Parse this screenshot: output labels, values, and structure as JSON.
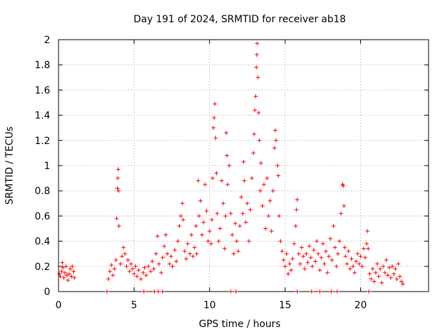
{
  "chart_data": {
    "type": "scatter",
    "title": "Day 191 of 2024, SRMTID for receiver ab18",
    "xlabel": "GPS time / hours",
    "ylabel": "SRMTID / TECUs",
    "xlim": [
      0,
      24.5
    ],
    "ylim": [
      0,
      2
    ],
    "xticks": [
      0,
      5,
      10,
      15,
      20
    ],
    "xtick_labels": [
      "0",
      "5",
      "10",
      "15",
      "20"
    ],
    "yticks": [
      0,
      0.2,
      0.4,
      0.6,
      0.8,
      1,
      1.2,
      1.4,
      1.6,
      1.8,
      2
    ],
    "ytick_labels": [
      "0",
      "0.2",
      "0.4",
      "0.6",
      "0.8",
      "1",
      "1.2",
      "1.4",
      "1.6",
      "1.8",
      "2"
    ],
    "grid": true,
    "marker": "+",
    "series": [
      {
        "name": "SRMTID",
        "color": "#ff0000",
        "points": [
          [
            0.05,
            0.14
          ],
          [
            0.12,
            0.12
          ],
          [
            0.2,
            0.16
          ],
          [
            0.25,
            0.23
          ],
          [
            0.3,
            0.19
          ],
          [
            0.35,
            0.11
          ],
          [
            0.42,
            0.15
          ],
          [
            0.5,
            0.2
          ],
          [
            0.55,
            0.13
          ],
          [
            0.62,
            0.09
          ],
          [
            0.7,
            0.14
          ],
          [
            0.78,
            0.18
          ],
          [
            0.85,
            0.12
          ],
          [
            0.92,
            0.2
          ],
          [
            1.0,
            0.16
          ],
          [
            1.05,
            0.11
          ],
          [
            3.3,
            0.1
          ],
          [
            3.4,
            0.16
          ],
          [
            3.5,
            0.21
          ],
          [
            3.6,
            0.13
          ],
          [
            3.7,
            0.18
          ],
          [
            3.8,
            0.25
          ],
          [
            3.85,
            0.58
          ],
          [
            3.9,
            0.82
          ],
          [
            3.92,
            0.9
          ],
          [
            3.95,
            0.97
          ],
          [
            3.98,
            0.8
          ],
          [
            4.0,
            0.52
          ],
          [
            4.1,
            0.22
          ],
          [
            4.2,
            0.28
          ],
          [
            4.3,
            0.35
          ],
          [
            4.4,
            0.3
          ],
          [
            4.5,
            0.2
          ],
          [
            4.6,
            0.25
          ],
          [
            4.7,
            0.16
          ],
          [
            4.8,
            0.22
          ],
          [
            4.9,
            0.18
          ],
          [
            5.0,
            0.14
          ],
          [
            5.1,
            0.2
          ],
          [
            5.2,
            0.12
          ],
          [
            5.3,
            0.17
          ],
          [
            5.45,
            0.1
          ],
          [
            5.6,
            0.15
          ],
          [
            5.7,
            0.19
          ],
          [
            5.8,
            0.13
          ],
          [
            5.95,
            0.2
          ],
          [
            6.1,
            0.16
          ],
          [
            6.2,
            0.24
          ],
          [
            6.3,
            0.18
          ],
          [
            6.45,
            0.3
          ],
          [
            6.55,
            0.44
          ],
          [
            6.65,
            0.22
          ],
          [
            6.8,
            0.15
          ],
          [
            6.9,
            0.27
          ],
          [
            7.0,
            0.36
          ],
          [
            7.1,
            0.45
          ],
          [
            7.2,
            0.3
          ],
          [
            7.35,
            0.22
          ],
          [
            7.45,
            0.28
          ],
          [
            7.55,
            0.2
          ],
          [
            7.7,
            0.33
          ],
          [
            7.8,
            0.24
          ],
          [
            7.9,
            0.4
          ],
          [
            8.0,
            0.52
          ],
          [
            8.1,
            0.6
          ],
          [
            8.2,
            0.7
          ],
          [
            8.25,
            0.57
          ],
          [
            8.35,
            0.32
          ],
          [
            8.45,
            0.26
          ],
          [
            8.55,
            0.38
          ],
          [
            8.7,
            0.3
          ],
          [
            8.8,
            0.45
          ],
          [
            8.9,
            0.28
          ],
          [
            9.0,
            0.35
          ],
          [
            9.1,
            0.52
          ],
          [
            9.15,
            0.3
          ],
          [
            9.25,
            0.88
          ],
          [
            9.3,
            0.6
          ],
          [
            9.4,
            0.72
          ],
          [
            9.5,
            0.45
          ],
          [
            9.6,
            0.55
          ],
          [
            9.7,
            0.85
          ],
          [
            9.8,
            0.64
          ],
          [
            9.9,
            0.4
          ],
          [
            10.0,
            0.48
          ],
          [
            10.1,
            0.38
          ],
          [
            10.15,
            0.57
          ],
          [
            10.2,
            0.9
          ],
          [
            10.25,
            1.3
          ],
          [
            10.3,
            1.38
          ],
          [
            10.35,
            1.49
          ],
          [
            10.4,
            1.22
          ],
          [
            10.45,
            0.94
          ],
          [
            10.5,
            0.62
          ],
          [
            10.6,
            0.4
          ],
          [
            10.7,
            0.5
          ],
          [
            10.8,
            0.88
          ],
          [
            10.9,
            0.7
          ],
          [
            11.0,
            0.34
          ],
          [
            11.05,
            0.6
          ],
          [
            11.1,
            1.26
          ],
          [
            11.15,
            1.08
          ],
          [
            11.2,
            0.85
          ],
          [
            11.3,
            1.0
          ],
          [
            11.4,
            0.62
          ],
          [
            11.5,
            0.45
          ],
          [
            11.6,
            0.3
          ],
          [
            11.7,
            0.54
          ],
          [
            11.8,
            0.4
          ],
          [
            11.9,
            0.32
          ],
          [
            12.0,
            0.52
          ],
          [
            12.1,
            0.75
          ],
          [
            12.2,
            0.62
          ],
          [
            12.25,
            1.03
          ],
          [
            12.3,
            0.88
          ],
          [
            12.4,
            0.55
          ],
          [
            12.5,
            0.7
          ],
          [
            12.6,
            0.4
          ],
          [
            12.7,
            0.65
          ],
          [
            12.8,
            0.9
          ],
          [
            12.9,
            1.1
          ],
          [
            12.95,
            1.25
          ],
          [
            13.0,
            1.44
          ],
          [
            13.05,
            1.55
          ],
          [
            13.1,
            1.78
          ],
          [
            13.13,
            1.88
          ],
          [
            13.15,
            1.97
          ],
          [
            13.2,
            1.7
          ],
          [
            13.25,
            1.42
          ],
          [
            13.3,
            1.2
          ],
          [
            13.35,
            0.8
          ],
          [
            13.4,
            1.02
          ],
          [
            13.5,
            0.68
          ],
          [
            13.6,
            0.85
          ],
          [
            13.7,
            0.5
          ],
          [
            13.8,
            0.9
          ],
          [
            13.9,
            0.6
          ],
          [
            14.0,
            0.72
          ],
          [
            14.1,
            0.48
          ],
          [
            14.2,
            0.8
          ],
          [
            14.3,
            1.14
          ],
          [
            14.35,
            1.28
          ],
          [
            14.4,
            1.2
          ],
          [
            14.5,
            1.0
          ],
          [
            14.55,
            0.92
          ],
          [
            14.6,
            0.6
          ],
          [
            14.7,
            0.4
          ],
          [
            14.8,
            0.32
          ],
          [
            14.9,
            0.25
          ],
          [
            15.0,
            0.2
          ],
          [
            15.1,
            0.3
          ],
          [
            15.2,
            0.14
          ],
          [
            15.3,
            0.22
          ],
          [
            15.4,
            0.17
          ],
          [
            15.5,
            0.26
          ],
          [
            15.6,
            0.38
          ],
          [
            15.7,
            0.52
          ],
          [
            15.75,
            0.65
          ],
          [
            15.8,
            0.73
          ],
          [
            15.9,
            0.3
          ],
          [
            16.0,
            0.22
          ],
          [
            16.1,
            0.35
          ],
          [
            16.2,
            0.28
          ],
          [
            16.3,
            0.18
          ],
          [
            16.4,
            0.3
          ],
          [
            16.5,
            0.23
          ],
          [
            16.6,
            0.36
          ],
          [
            16.7,
            0.27
          ],
          [
            16.8,
            0.2
          ],
          [
            16.9,
            0.33
          ],
          [
            17.0,
            0.24
          ],
          [
            17.1,
            0.4
          ],
          [
            17.2,
            0.3
          ],
          [
            17.3,
            0.17
          ],
          [
            17.4,
            0.27
          ],
          [
            17.5,
            0.38
          ],
          [
            17.6,
            0.22
          ],
          [
            17.7,
            0.32
          ],
          [
            17.8,
            0.15
          ],
          [
            17.9,
            0.28
          ],
          [
            18.0,
            0.42
          ],
          [
            18.1,
            0.25
          ],
          [
            18.2,
            0.52
          ],
          [
            18.3,
            0.35
          ],
          [
            18.4,
            0.2
          ],
          [
            18.5,
            0.3
          ],
          [
            18.6,
            0.4
          ],
          [
            18.7,
            0.62
          ],
          [
            18.8,
            0.85
          ],
          [
            18.85,
            0.84
          ],
          [
            18.9,
            0.68
          ],
          [
            18.95,
            0.35
          ],
          [
            19.0,
            0.28
          ],
          [
            19.1,
            0.22
          ],
          [
            19.2,
            0.32
          ],
          [
            19.3,
            0.18
          ],
          [
            19.4,
            0.26
          ],
          [
            19.5,
            0.2
          ],
          [
            19.6,
            0.15
          ],
          [
            19.7,
            0.24
          ],
          [
            19.8,
            0.3
          ],
          [
            19.9,
            0.22
          ],
          [
            20.0,
            0.28
          ],
          [
            20.1,
            0.2
          ],
          [
            20.2,
            0.34
          ],
          [
            20.3,
            0.27
          ],
          [
            20.4,
            0.38
          ],
          [
            20.45,
            0.48
          ],
          [
            20.5,
            0.34
          ],
          [
            20.6,
            0.14
          ],
          [
            20.7,
            0.1
          ],
          [
            20.8,
            0.18
          ],
          [
            20.9,
            0.08
          ],
          [
            21.0,
            0.15
          ],
          [
            21.1,
            0.22
          ],
          [
            21.2,
            0.12
          ],
          [
            21.3,
            0.18
          ],
          [
            21.4,
            0.07
          ],
          [
            21.5,
            0.2
          ],
          [
            21.6,
            0.15
          ],
          [
            21.7,
            0.25
          ],
          [
            21.8,
            0.13
          ],
          [
            21.9,
            0.19
          ],
          [
            22.0,
            0.11
          ],
          [
            22.1,
            0.2
          ],
          [
            22.2,
            0.14
          ],
          [
            22.3,
            0.18
          ],
          [
            22.4,
            0.1
          ],
          [
            22.5,
            0.22
          ],
          [
            22.6,
            0.12
          ],
          [
            22.7,
            0.08
          ],
          [
            22.8,
            0.06
          ],
          [
            6.6,
            0.0
          ],
          [
            6.9,
            0.0
          ],
          [
            3.2,
            0.0
          ],
          [
            5.65,
            0.0
          ],
          [
            6.35,
            0.0
          ],
          [
            11.4,
            0.0
          ],
          [
            11.75,
            0.0
          ],
          [
            15.8,
            0.0
          ],
          [
            16.75,
            0.0
          ],
          [
            17.3,
            0.0
          ],
          [
            18.05,
            0.0
          ],
          [
            18.45,
            0.0
          ],
          [
            20.55,
            0.0
          ]
        ]
      }
    ]
  }
}
